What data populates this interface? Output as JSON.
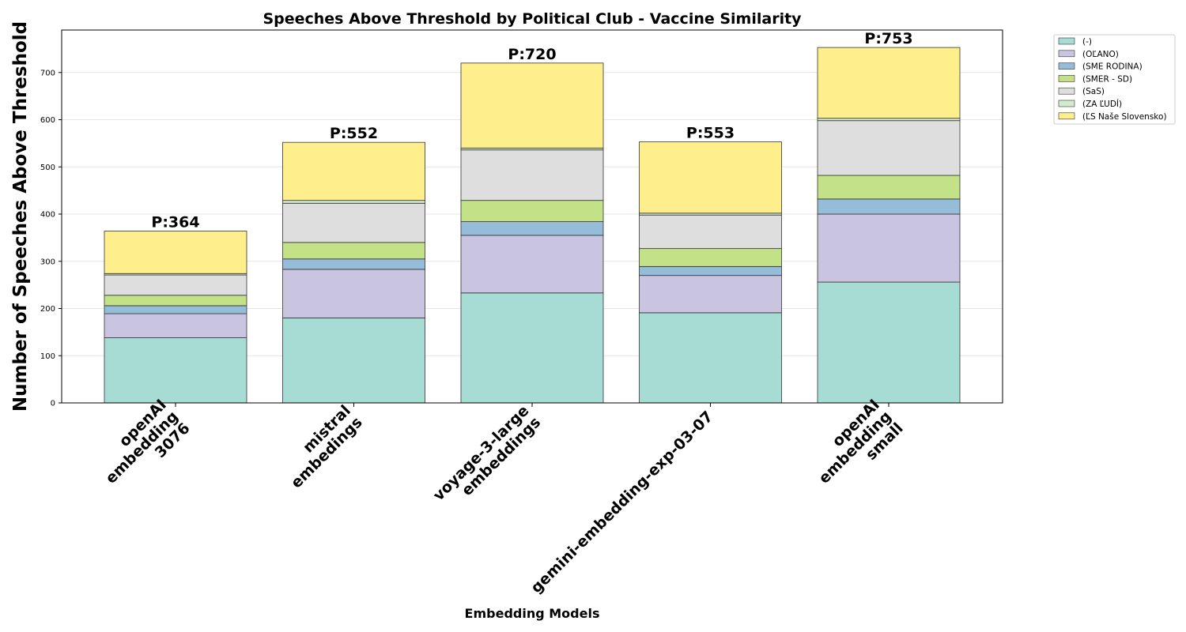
{
  "chart_data": {
    "type": "bar",
    "stacked": true,
    "title": "Speeches Above Threshold by Political Club - Vaccine Similarity",
    "xlabel": "Embedding Models",
    "ylabel": "Number of Speeches Above Threshold",
    "ylim": [
      0,
      790
    ],
    "yticks": [
      0,
      100,
      200,
      300,
      400,
      500,
      600,
      700
    ],
    "grid": true,
    "legend_position": "outside-top-right",
    "categories": [
      [
        "openAI",
        "embedding",
        "3076"
      ],
      [
        "mistral",
        "embedings"
      ],
      [
        "voyage-3-large",
        "embeddings"
      ],
      [
        "gemini-embedding-exp-03-07"
      ],
      [
        "openAI",
        "embedding",
        "small"
      ]
    ],
    "series": [
      {
        "name": "(-)",
        "color": "#a6dcd4",
        "values": [
          138,
          180,
          233,
          191,
          256
        ]
      },
      {
        "name": "(OĽANO)",
        "color": "#c9c4df",
        "values": [
          51,
          103,
          122,
          79,
          144
        ]
      },
      {
        "name": "(SME RODINA)",
        "color": "#95bcd9",
        "values": [
          17,
          22,
          29,
          19,
          32
        ]
      },
      {
        "name": "(SMER - SD)",
        "color": "#c3e287",
        "values": [
          22,
          35,
          45,
          38,
          50
        ]
      },
      {
        "name": "(SaS)",
        "color": "#dedede",
        "values": [
          43,
          83,
          107,
          71,
          116
        ]
      },
      {
        "name": "(ZA ĽUDÍ)",
        "color": "#d1ebcf",
        "values": [
          3,
          6,
          4,
          4,
          5
        ]
      },
      {
        "name": "(ĽS Naše Slovensko)",
        "color": "#ffee8c",
        "values": [
          90,
          123,
          180,
          151,
          150
        ]
      }
    ],
    "totals": [
      "P:364",
      "P:552",
      "P:720",
      "P:553",
      "P:753"
    ],
    "total_values": [
      364,
      552,
      720,
      553,
      753
    ]
  }
}
